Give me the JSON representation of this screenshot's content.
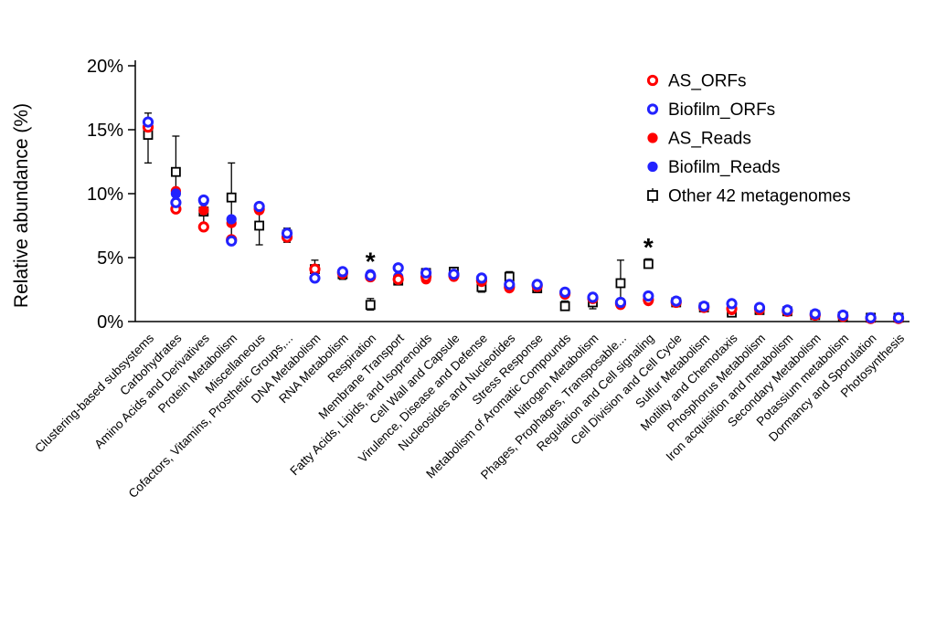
{
  "chart_data": {
    "type": "scatter",
    "title": "",
    "xlabel": "",
    "ylabel": "Relative abundance (%)",
    "ylim": [
      0,
      20
    ],
    "grid": false,
    "legend_position": "top-right",
    "y_ticks": {
      "values": [
        0,
        5,
        10,
        15,
        20
      ],
      "labels": [
        "0%",
        "5%",
        "10%",
        "15%",
        "20%"
      ]
    },
    "categories": [
      "Clustering-based subsystems",
      "Carbohydrates",
      "Amino Acids and Derivatives",
      "Protein Metabolism",
      "Miscellaneous",
      "Cofactors, Vitamins, Prosthetic Groups,...",
      "DNA Metabolism",
      "RNA Metabolism",
      "Respiration",
      "Membrane Transport",
      "Fatty Acids, Lipids, and Isoprenoids",
      "Cell Wall and Capsule",
      "Virulence, Disease and Defense",
      "Nucleosides and Nucleotides",
      "Stress Response",
      "Metabolism of Aromatic Compounds",
      "Nitrogen Metabolism",
      "Phages, Prophages, Transposable...",
      "Regulation and Cell signaling",
      "Cell Division and Cell Cycle",
      "Sulfur Metabolism",
      "Motility and Chemotaxis",
      "Phosphorus Metabolism",
      "Iron acquisition and metabolism",
      "Secondary Metabolism",
      "Potassium metabolism",
      "Dormancy and Sporulation",
      "Photosynthesis"
    ],
    "series": [
      {
        "name": "AS_ORFs",
        "marker": "open-circle",
        "color": "#ff0000",
        "values": [
          15.2,
          8.8,
          7.4,
          6.4,
          8.8,
          6.6,
          4.1,
          3.8,
          3.5,
          3.3,
          3.5,
          3.6,
          3.2,
          2.7,
          2.8,
          2.2,
          1.8,
          1.4,
          1.7,
          1.5,
          1.1,
          1.0,
          1.0,
          0.8,
          0.5,
          0.4,
          0.25,
          0.25
        ]
      },
      {
        "name": "Biofilm_ORFs",
        "marker": "open-circle",
        "color": "#2222ff",
        "values": [
          15.6,
          9.3,
          9.5,
          6.3,
          9.0,
          6.9,
          3.4,
          3.9,
          3.6,
          4.2,
          3.8,
          3.7,
          3.4,
          2.9,
          2.9,
          2.3,
          1.9,
          1.5,
          2.0,
          1.6,
          1.2,
          1.4,
          1.1,
          0.9,
          0.6,
          0.5,
          0.3,
          0.3
        ]
      },
      {
        "name": "AS_Reads",
        "marker": "filled-circle",
        "color": "#ff0000",
        "values": [
          15.3,
          10.2,
          8.7,
          7.7,
          8.7,
          6.6,
          4.0,
          3.7,
          3.5,
          3.3,
          3.3,
          3.5,
          3.1,
          2.6,
          2.7,
          2.1,
          1.8,
          1.3,
          1.6,
          1.5,
          1.1,
          0.9,
          0.9,
          0.8,
          0.5,
          0.4,
          0.2,
          0.2
        ]
      },
      {
        "name": "Biofilm_Reads",
        "marker": "filled-circle",
        "color": "#2222ff",
        "values": [
          15.6,
          10.0,
          9.4,
          8.0,
          8.9,
          6.8,
          4.1,
          3.8,
          3.7,
          3.5,
          3.6,
          3.6,
          3.3,
          2.8,
          2.8,
          2.2,
          1.9,
          1.4,
          1.9,
          1.6,
          1.2,
          1.2,
          1.0,
          0.9,
          0.6,
          0.5,
          0.3,
          0.3
        ]
      },
      {
        "name": "Other 42 metagenomes",
        "marker": "square-errorbar",
        "color": "#000000",
        "values": [
          14.6,
          11.7,
          8.6,
          9.7,
          7.5,
          6.8,
          4.1,
          3.7,
          1.3,
          3.2,
          3.8,
          3.9,
          2.7,
          3.5,
          2.6,
          1.2,
          1.5,
          3.0,
          4.5,
          1.5,
          1.1,
          0.7,
          0.9,
          0.8,
          0.5,
          0.4,
          0.3,
          0.3
        ],
        "err_low": [
          12.4,
          9.6,
          7.5,
          6.6,
          6.0,
          6.2,
          3.4,
          3.3,
          0.9,
          2.9,
          3.5,
          3.6,
          2.3,
          3.1,
          2.3,
          0.9,
          1.0,
          1.8,
          4.2,
          1.3,
          0.9,
          0.5,
          0.7,
          0.6,
          0.35,
          0.3,
          0.15,
          0.2
        ],
        "err_high": [
          16.3,
          14.5,
          9.6,
          12.4,
          9.0,
          7.3,
          4.8,
          4.1,
          1.8,
          3.6,
          4.1,
          4.2,
          3.1,
          3.9,
          3.0,
          1.6,
          2.2,
          4.8,
          4.9,
          1.7,
          1.3,
          1.0,
          1.1,
          1.0,
          0.65,
          0.55,
          0.5,
          0.45
        ]
      }
    ],
    "annotations": [
      {
        "category": "Respiration",
        "category_index": 8,
        "y": 4.6,
        "text": "*"
      },
      {
        "category": "Regulation and Cell signaling",
        "category_index": 18,
        "y": 5.7,
        "text": "*"
      }
    ]
  }
}
